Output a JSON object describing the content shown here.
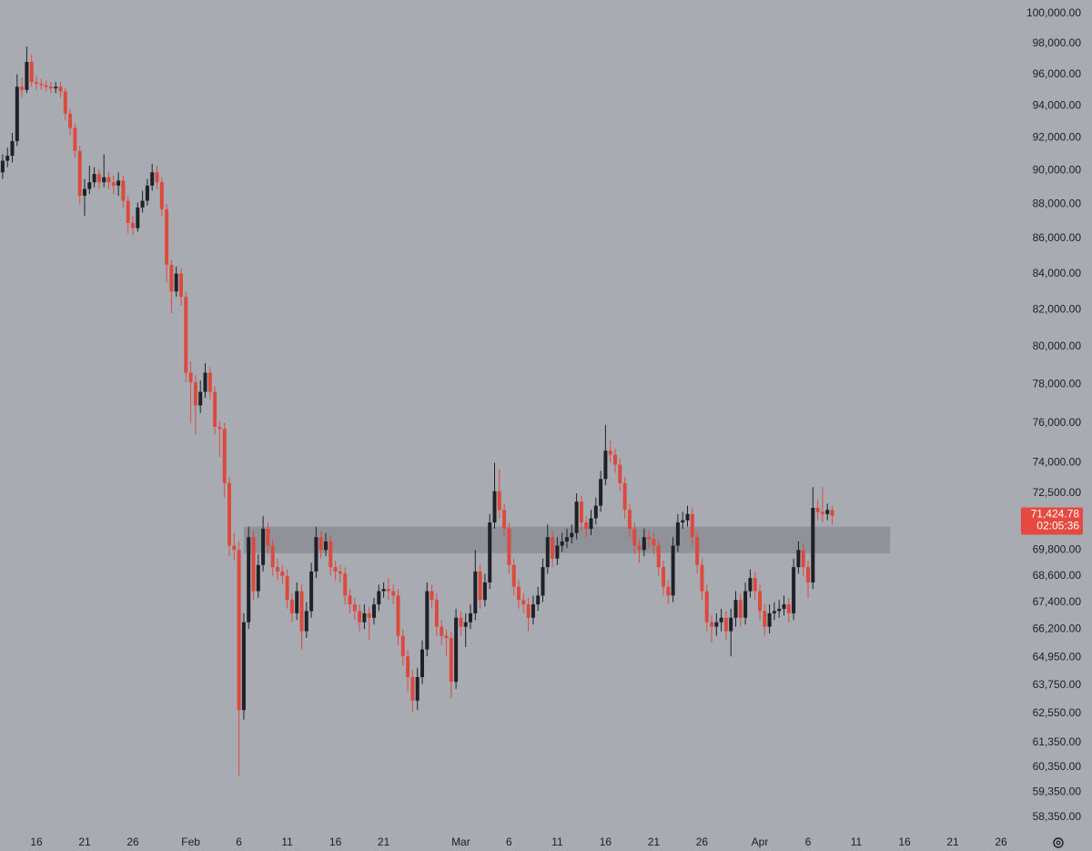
{
  "chart_data": {
    "type": "candlestick",
    "log_scale": true,
    "ylim": [
      57750,
      100900
    ],
    "yticks": [
      {
        "value": 100000,
        "label": "100,000.00"
      },
      {
        "value": 98000,
        "label": "98,000.00"
      },
      {
        "value": 96000,
        "label": "96,000.00"
      },
      {
        "value": 94000,
        "label": "94,000.00"
      },
      {
        "value": 92000,
        "label": "92,000.00"
      },
      {
        "value": 90000,
        "label": "90,000.00"
      },
      {
        "value": 88000,
        "label": "88,000.00"
      },
      {
        "value": 86000,
        "label": "86,000.00"
      },
      {
        "value": 84000,
        "label": "84,000.00"
      },
      {
        "value": 82000,
        "label": "82,000.00"
      },
      {
        "value": 80000,
        "label": "80,000.00"
      },
      {
        "value": 78000,
        "label": "78,000.00"
      },
      {
        "value": 76000,
        "label": "76,000.00"
      },
      {
        "value": 74000,
        "label": "74,000.00"
      },
      {
        "value": 72500,
        "label": "72,500.00"
      },
      {
        "value": 69800,
        "label": "69,800.00"
      },
      {
        "value": 68600,
        "label": "68,600.00"
      },
      {
        "value": 67400,
        "label": "67,400.00"
      },
      {
        "value": 66200,
        "label": "66,200.00"
      },
      {
        "value": 64950,
        "label": "64,950.00"
      },
      {
        "value": 63750,
        "label": "63,750.00"
      },
      {
        "value": 62550,
        "label": "62,550.00"
      },
      {
        "value": 61350,
        "label": "61,350.00"
      },
      {
        "value": 60350,
        "label": "60,350.00"
      },
      {
        "value": 59350,
        "label": "59,350.00"
      },
      {
        "value": 58350,
        "label": "58,350.00"
      }
    ],
    "up_color": "#1e2228",
    "down_color": "#dc4a3d",
    "categories": [
      null,
      null,
      null,
      null,
      null,
      null,
      null,
      "16",
      null,
      null,
      null,
      null,
      null,
      null,
      null,
      null,
      null,
      "21",
      null,
      null,
      null,
      null,
      null,
      null,
      null,
      null,
      null,
      "26",
      null,
      null,
      null,
      null,
      null,
      null,
      null,
      null,
      null,
      null,
      null,
      "Feb",
      null,
      null,
      null,
      null,
      null,
      null,
      null,
      null,
      null,
      "6",
      null,
      null,
      null,
      null,
      null,
      null,
      null,
      null,
      null,
      "11",
      null,
      null,
      null,
      null,
      null,
      null,
      null,
      null,
      null,
      "16",
      null,
      null,
      null,
      null,
      null,
      null,
      null,
      null,
      null,
      "21",
      null,
      null,
      null,
      null,
      null,
      null,
      null,
      null,
      null,
      null,
      null,
      null,
      null,
      null,
      null,
      "Mar",
      null,
      null,
      null,
      null,
      null,
      null,
      null,
      null,
      null,
      "6",
      null,
      null,
      null,
      null,
      null,
      null,
      null,
      null,
      null,
      "11",
      null,
      null,
      null,
      null,
      null,
      null,
      null,
      null,
      null,
      "16",
      null,
      null,
      null,
      null,
      null,
      null,
      null,
      null,
      null,
      "21",
      null,
      null,
      null,
      null,
      null,
      null,
      null,
      null,
      null,
      "26",
      null,
      null,
      null,
      null,
      null,
      null,
      null,
      null,
      null,
      null,
      null,
      "Apr",
      null,
      null,
      null,
      null,
      null,
      null,
      null,
      null,
      null,
      "6",
      null,
      null,
      null,
      null,
      null,
      null,
      null,
      null,
      null,
      "11",
      null,
      null,
      null,
      null,
      null,
      null,
      null,
      null,
      null,
      "16",
      null,
      null,
      null,
      null,
      null,
      null,
      null,
      null,
      null,
      "21",
      null,
      null,
      null,
      null,
      null,
      null,
      null,
      null,
      null,
      "26"
    ],
    "open": [
      89900,
      90600,
      90900,
      91800,
      95200,
      95000,
      96800,
      95500,
      95400,
      95300,
      95200,
      95100,
      95200,
      94900,
      93500,
      92600,
      91200,
      88500,
      88900,
      89300,
      89800,
      89300,
      89600,
      89300,
      89100,
      89400,
      88200,
      86900,
      86600,
      87800,
      88200,
      89100,
      89900,
      89300,
      87700,
      84500,
      83000,
      84000,
      82700,
      78600,
      78100,
      76900,
      77600,
      78600,
      77600,
      75800,
      75700,
      73000,
      70000,
      69800,
      62700,
      66500,
      70400,
      67900,
      69100,
      70800,
      70000,
      69000,
      68800,
      68600,
      67500,
      66900,
      67900,
      66100,
      67000,
      68800,
      70400,
      69800,
      70200,
      69000,
      68800,
      68700,
      67700,
      67300,
      67000,
      66500,
      66900,
      66700,
      67300,
      67900,
      68000,
      67900,
      67700,
      65900,
      65000,
      64100,
      63100,
      64100,
      65300,
      67900,
      67500,
      66300,
      65900,
      65800,
      63900,
      66700,
      66300,
      66500,
      66900,
      68800,
      67500,
      68300,
      71100,
      72600,
      71700,
      70800,
      69100,
      68100,
      67500,
      67300,
      66700,
      67300,
      67700,
      69000,
      70400,
      69400,
      70000,
      70200,
      70400,
      70600,
      72100,
      71100,
      70800,
      71300,
      71900,
      73200,
      74600,
      74400,
      73900,
      73000,
      71700,
      70800,
      70000,
      69800,
      70400,
      70300,
      70000,
      69000,
      68100,
      67700,
      70000,
      71100,
      71200,
      71500,
      70400,
      69100,
      67900,
      66500,
      66300,
      66500,
      66700,
      66100,
      66700,
      67500,
      66700,
      67900,
      68500,
      67900,
      67000,
      66300,
      66900,
      67000,
      67100,
      67300,
      66900,
      69000,
      69800,
      69000,
      68300,
      71800,
      71600,
      71500,
      71700,
      null,
      null,
      null,
      null,
      null,
      null,
      null,
      null,
      null,
      null,
      null,
      null,
      null,
      null,
      null,
      null,
      null,
      null,
      null,
      null,
      null,
      null,
      null,
      null,
      null,
      null,
      null,
      null,
      null,
      null,
      null,
      null,
      null,
      null,
      null
    ],
    "high": [
      91000,
      91400,
      92300,
      96000,
      95800,
      97800,
      97300,
      95900,
      95700,
      95600,
      95500,
      95500,
      95500,
      95100,
      93800,
      92900,
      91500,
      89500,
      90300,
      90200,
      90100,
      91000,
      89900,
      89700,
      89900,
      89700,
      88500,
      87300,
      88100,
      88800,
      89500,
      90400,
      90300,
      89600,
      88000,
      84800,
      84400,
      84300,
      83000,
      79200,
      78500,
      78200,
      79100,
      78900,
      77900,
      76100,
      76000,
      73300,
      70600,
      70200,
      66900,
      70900,
      70700,
      69600,
      71400,
      71100,
      70300,
      69400,
      69100,
      68900,
      67800,
      68300,
      68200,
      67400,
      69200,
      70900,
      70700,
      70600,
      70500,
      69300,
      69100,
      69000,
      68000,
      67600,
      67300,
      67300,
      67200,
      67600,
      68200,
      68300,
      68500,
      68200,
      68000,
      66200,
      65300,
      64400,
      64500,
      65700,
      68300,
      68200,
      67800,
      66600,
      66200,
      66100,
      67100,
      67000,
      66900,
      67300,
      69800,
      69100,
      68700,
      71500,
      74000,
      73700,
      72000,
      71100,
      69400,
      68400,
      67800,
      67600,
      67700,
      68100,
      69400,
      71000,
      70700,
      70400,
      70600,
      70800,
      71000,
      72500,
      72400,
      71400,
      71700,
      72300,
      73600,
      75900,
      75100,
      74700,
      74200,
      73300,
      72000,
      71100,
      70300,
      70800,
      70700,
      70600,
      70300,
      69300,
      68400,
      70400,
      71500,
      71600,
      71900,
      71800,
      70700,
      69400,
      68200,
      66800,
      66900,
      67100,
      67000,
      67100,
      67900,
      67800,
      68300,
      68900,
      68800,
      68200,
      67300,
      67300,
      67400,
      67500,
      67700,
      67600,
      69400,
      70200,
      70100,
      69300,
      72800,
      72200,
      72800,
      72000,
      71900,
      null,
      null,
      null,
      null,
      null,
      null,
      null,
      null,
      null,
      null,
      null,
      null,
      null,
      null,
      null,
      null,
      null,
      null,
      null,
      null,
      null,
      null,
      null,
      null,
      null,
      null,
      null,
      null,
      null,
      null,
      null,
      null,
      null,
      null,
      null
    ],
    "low": [
      89500,
      90200,
      90500,
      91500,
      94500,
      94800,
      95200,
      95000,
      95000,
      94900,
      94800,
      94800,
      94500,
      93100,
      92100,
      90800,
      88000,
      87300,
      88600,
      89000,
      88900,
      89000,
      88900,
      88600,
      88500,
      87800,
      86300,
      86200,
      86400,
      87500,
      87900,
      88800,
      88900,
      87300,
      83500,
      81800,
      82700,
      82200,
      78100,
      76000,
      75400,
      76500,
      77300,
      77200,
      75400,
      74300,
      72300,
      69500,
      69300,
      60000,
      62300,
      66200,
      67500,
      67600,
      68800,
      69600,
      68600,
      68400,
      68200,
      67100,
      66500,
      66600,
      65300,
      65800,
      66700,
      68500,
      69400,
      69500,
      68600,
      68400,
      68300,
      67300,
      66900,
      66600,
      66100,
      66200,
      65700,
      66400,
      67000,
      67600,
      67500,
      67300,
      65500,
      64600,
      63500,
      62600,
      62700,
      63800,
      65000,
      67100,
      65900,
      65500,
      65000,
      63200,
      63600,
      65900,
      65400,
      66200,
      66600,
      67100,
      67200,
      68000,
      70800,
      71300,
      70400,
      68700,
      67700,
      67100,
      66900,
      66100,
      66400,
      67000,
      67400,
      68700,
      69000,
      69100,
      69700,
      69900,
      70100,
      70300,
      70700,
      70400,
      70500,
      71000,
      71600,
      72900,
      74000,
      73500,
      72600,
      71300,
      70400,
      69600,
      69200,
      69500,
      69900,
      69600,
      68600,
      67700,
      67300,
      67400,
      69700,
      70800,
      70900,
      70000,
      68700,
      67500,
      66100,
      65600,
      65900,
      66100,
      65700,
      65000,
      66300,
      66300,
      66400,
      67600,
      67500,
      66600,
      65900,
      66000,
      66600,
      66700,
      66800,
      66500,
      66600,
      68700,
      68600,
      67600,
      68000,
      71200,
      71100,
      71200,
      71000,
      null,
      null,
      null,
      null,
      null,
      null,
      null,
      null,
      null,
      null,
      null,
      null,
      null,
      null,
      null,
      null,
      null,
      null,
      null,
      null,
      null,
      null,
      null,
      null,
      null,
      null,
      null,
      null,
      null,
      null,
      null,
      null,
      null,
      null,
      null
    ],
    "close": [
      90600,
      90900,
      91800,
      95200,
      95000,
      96800,
      95500,
      95400,
      95300,
      95200,
      95100,
      95200,
      94900,
      93500,
      92600,
      91200,
      88500,
      88900,
      89300,
      89800,
      89300,
      89600,
      89300,
      89100,
      89400,
      88200,
      86900,
      86600,
      87800,
      88200,
      89100,
      89900,
      89300,
      87700,
      84500,
      83000,
      84000,
      82700,
      78600,
      78100,
      76900,
      77600,
      78600,
      77600,
      75800,
      75700,
      73000,
      70000,
      69800,
      62700,
      66500,
      70400,
      67900,
      69100,
      70800,
      70000,
      69000,
      68800,
      68600,
      67500,
      66900,
      67900,
      66100,
      67000,
      68800,
      70400,
      69800,
      70200,
      69000,
      68800,
      68700,
      67700,
      67300,
      67000,
      66500,
      66900,
      66700,
      67300,
      67900,
      68000,
      67900,
      67700,
      65900,
      65000,
      64100,
      63100,
      64100,
      65300,
      67900,
      67500,
      66300,
      65900,
      65800,
      63900,
      66700,
      66300,
      66500,
      66900,
      68800,
      67500,
      68300,
      71100,
      72600,
      71700,
      70800,
      69100,
      68100,
      67500,
      67300,
      66700,
      67300,
      67700,
      69000,
      70400,
      69400,
      70000,
      70200,
      70400,
      70600,
      72100,
      71100,
      70800,
      71300,
      71900,
      73200,
      74600,
      74400,
      73900,
      73000,
      71700,
      70800,
      70000,
      69800,
      70400,
      70300,
      70000,
      69000,
      68100,
      67700,
      70000,
      71100,
      71200,
      71500,
      70400,
      69100,
      67900,
      66500,
      66300,
      66500,
      66700,
      66100,
      66700,
      67500,
      66700,
      67900,
      68500,
      67900,
      67000,
      66300,
      66900,
      67000,
      67100,
      67300,
      66900,
      69000,
      69800,
      69000,
      68300,
      71800,
      71600,
      71500,
      71700,
      71424.78,
      null,
      null,
      null,
      null,
      null,
      null,
      null,
      null,
      null,
      null,
      null,
      null,
      null,
      null,
      null,
      null,
      null,
      null,
      null,
      null,
      null,
      null,
      null,
      null,
      null,
      null,
      null,
      null,
      null,
      null,
      null,
      null,
      null,
      null,
      null
    ],
    "zone": {
      "range": [
        69650,
        70900
      ],
      "xrange": [
        50,
        184
      ],
      "color": "#8b8d94"
    },
    "last_price": {
      "value": 71424.78,
      "label": "71,424.78",
      "color": "#e5493f"
    },
    "countdown": "02:05:36"
  }
}
